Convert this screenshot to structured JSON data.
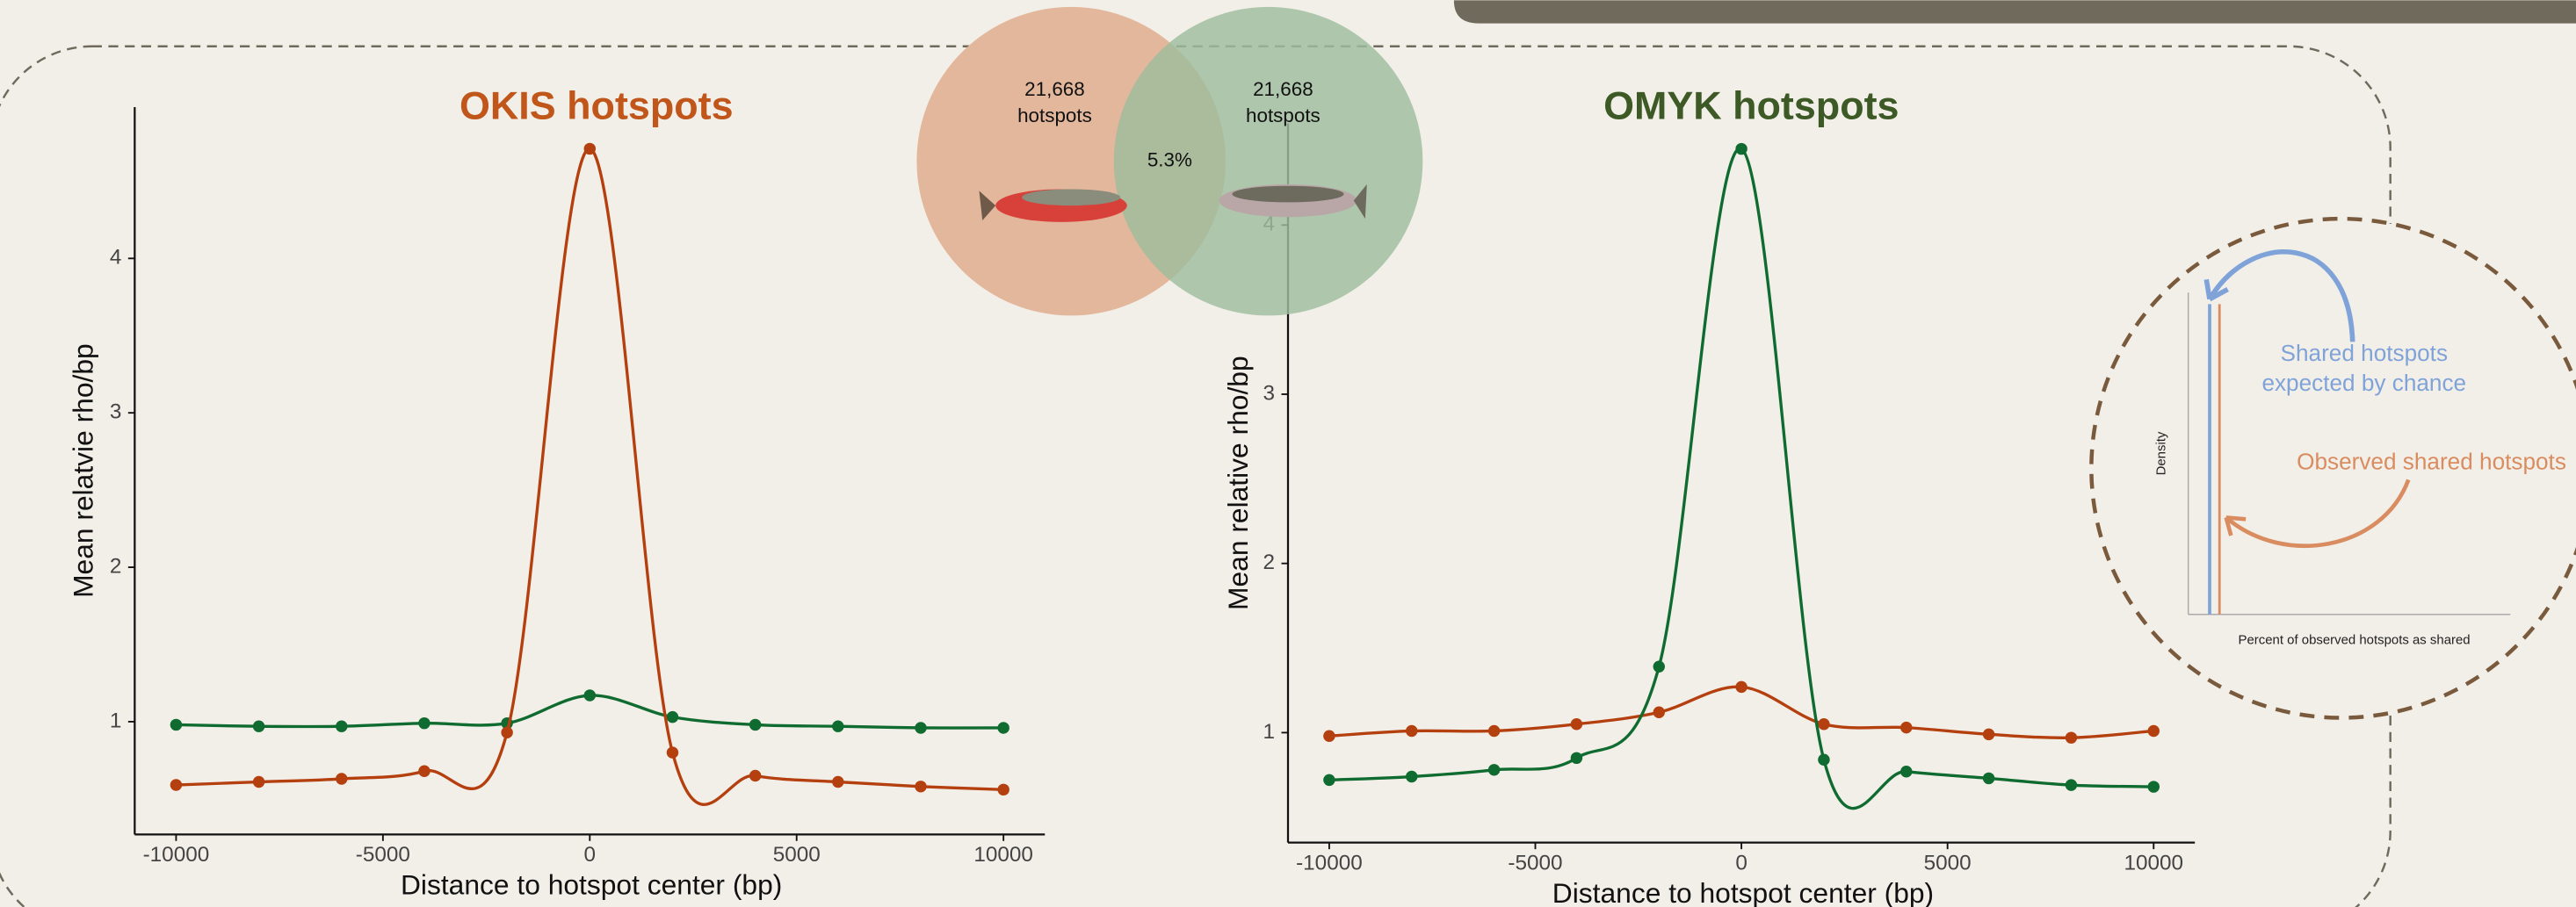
{
  "chart_data": [
    {
      "type": "line",
      "title": "OKIS hotspots",
      "title_color": "#c0561a",
      "ylabel": "Mean relatvie rho/bp",
      "xlabel": "Distance to hotspot center (bp)",
      "x": [
        -10000,
        -8000,
        -6000,
        -4000,
        -2000,
        0,
        2000,
        4000,
        6000,
        8000,
        10000
      ],
      "series": [
        {
          "color": "#0f6b2f",
          "values": [
            0.98,
            0.97,
            0.97,
            0.99,
            0.99,
            1.17,
            1.03,
            0.98,
            0.97,
            0.96,
            0.96
          ]
        },
        {
          "color": "#b5400f",
          "values": [
            0.59,
            0.61,
            0.63,
            0.68,
            0.93,
            4.71,
            0.8,
            0.65,
            0.61,
            0.58,
            0.56
          ]
        }
      ],
      "xlim": [
        -11000,
        11000
      ],
      "xticks": [
        -10000,
        -5000,
        0,
        5000,
        10000
      ],
      "ylim": [
        0.27,
        4.98
      ],
      "yticks": [
        1,
        2,
        3,
        4
      ],
      "grid": false
    },
    {
      "type": "line",
      "title": "OMYK hotspots",
      "title_color": "#3d5a26",
      "ylabel": "Mean relative rho/bp",
      "xlabel": "Distance to hotspot center (bp)",
      "x": [
        -10000,
        -8000,
        -6000,
        -4000,
        -2000,
        0,
        2000,
        4000,
        6000,
        8000,
        10000
      ],
      "series": [
        {
          "color": "#b5400f",
          "values": [
            0.98,
            1.01,
            1.01,
            1.05,
            1.12,
            1.27,
            1.05,
            1.03,
            0.99,
            0.97,
            1.01
          ]
        },
        {
          "color": "#0f6b2f",
          "values": [
            0.72,
            0.74,
            0.78,
            0.85,
            1.39,
            4.45,
            0.84,
            0.77,
            0.73,
            0.69,
            0.68
          ]
        }
      ],
      "xlim": [
        -11000,
        11000
      ],
      "xticks": [
        -10000,
        -5000,
        0,
        5000,
        10000
      ],
      "ylim": [
        0.35,
        4.6
      ],
      "yticks": [
        1,
        2,
        3,
        4
      ],
      "grid": false
    }
  ],
  "venn": {
    "left": {
      "count": "21,668",
      "label": "hotspots"
    },
    "right": {
      "count": "21,668",
      "label": "hotspots"
    },
    "overlap": "5.3%"
  },
  "inset": {
    "expected": [
      "Shared hotspots",
      "expected by chance"
    ],
    "observed": "Observed shared hotspots",
    "ylabel": "Density",
    "xlabel": "Percent of observed hotspots as shared"
  }
}
